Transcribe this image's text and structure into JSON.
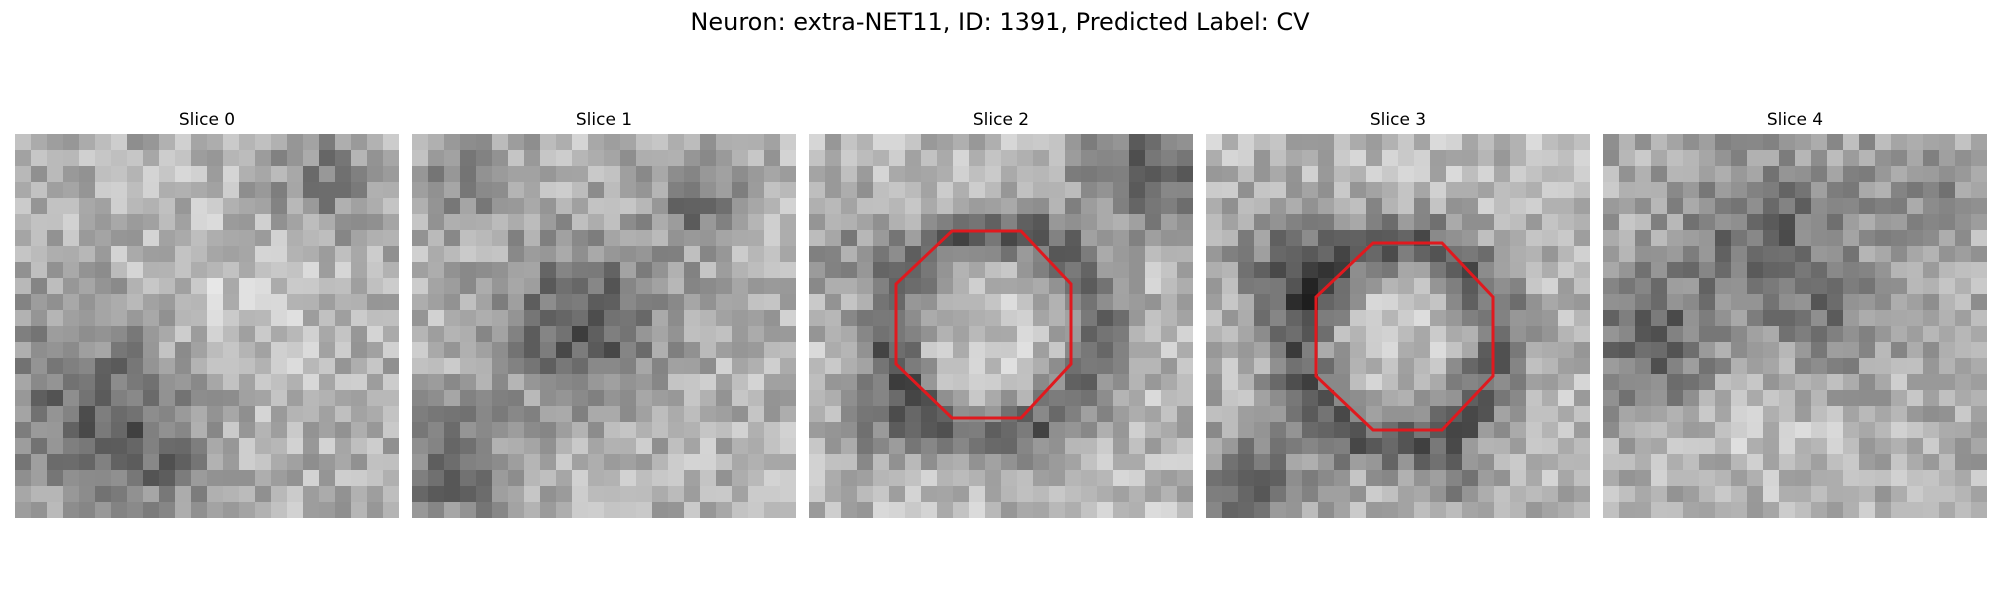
{
  "figure": {
    "title": "Neuron: extra-NET11, ID: 1391, Predicted Label: CV"
  },
  "slices": [
    {
      "title": "Slice 0",
      "has_outline": false
    },
    {
      "title": "Slice 1",
      "has_outline": false
    },
    {
      "title": "Slice 2",
      "has_outline": true
    },
    {
      "title": "Slice 3",
      "has_outline": true
    },
    {
      "title": "Slice 4",
      "has_outline": false
    }
  ],
  "colors": {
    "outline": "#e0191e",
    "background": "#ffffff"
  }
}
